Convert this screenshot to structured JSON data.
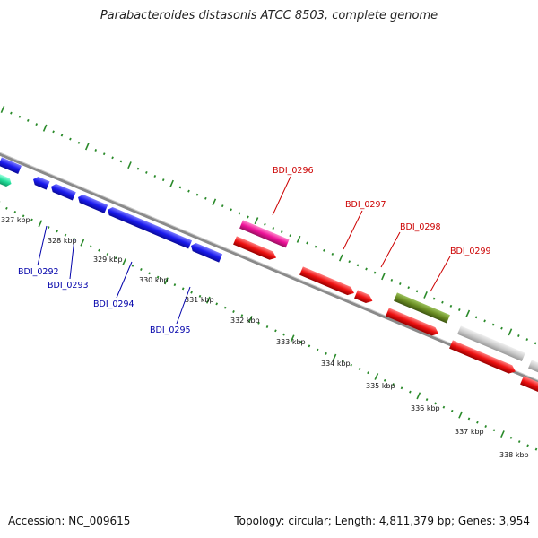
{
  "title": "Parabacteroides distasonis ATCC 8503, complete genome",
  "footer": {
    "accession": "Accession: NC_009615",
    "topology": "Topology: circular; Length: 4,811,379 bp; Genes: 3,954"
  },
  "colors": {
    "backbone": "#8a8a8a",
    "tick_green": "#2a8a2a",
    "minus_strand_label": "#0000aa",
    "plus_strand_label": "#cc0000",
    "blue_gene": "#1a1aee",
    "red_gene": "#ee1111",
    "pink_gene": "#ee1199",
    "olive_gene": "#6b8e23",
    "gray_gene": "#c8c8c8",
    "teal_gene": "#22dd99"
  },
  "scale_ticks": [
    "327 kbp",
    "328 kbp",
    "329 kbp",
    "330 kbp",
    "331 kbp",
    "332 kbp",
    "333 kbp",
    "334 kbp",
    "335 kbp",
    "336 kbp",
    "337 kbp",
    "338 kbp"
  ],
  "gene_labels": {
    "minus": [
      "BDI_0292",
      "BDI_0293",
      "BDI_0294",
      "BDI_0295"
    ],
    "plus": [
      "BDI_0296",
      "BDI_0297",
      "BDI_0298",
      "BDI_0299"
    ]
  }
}
